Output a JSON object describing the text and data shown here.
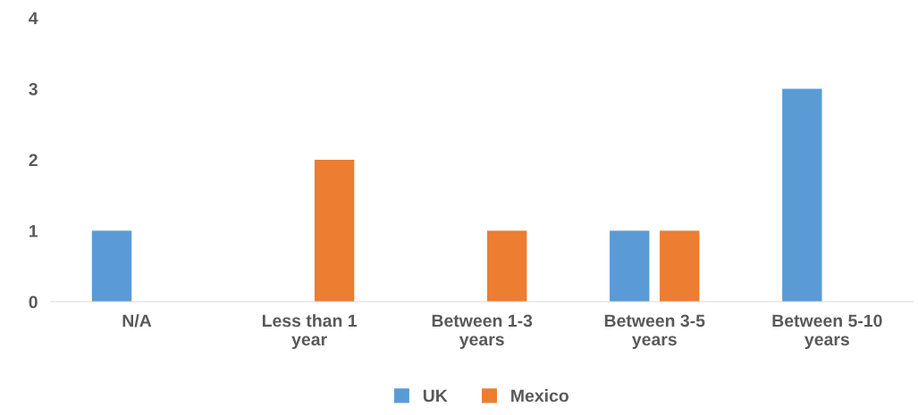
{
  "chart_data": {
    "type": "bar",
    "categories": [
      "N/A",
      "Less than 1\nyear",
      "Between 1-3\nyears",
      "Between 3-5\nyears",
      "Between 5-10\nyears"
    ],
    "series": [
      {
        "name": "UK",
        "color": "#5b9bd5",
        "values": [
          1,
          0,
          0,
          1,
          3
        ]
      },
      {
        "name": "Mexico",
        "color": "#ed7d31",
        "values": [
          0,
          2,
          1,
          1,
          0
        ]
      }
    ],
    "ylim": [
      0,
      4
    ],
    "yticks": [
      0,
      1,
      2,
      3,
      4
    ],
    "grid": false,
    "legend": "bottom"
  }
}
